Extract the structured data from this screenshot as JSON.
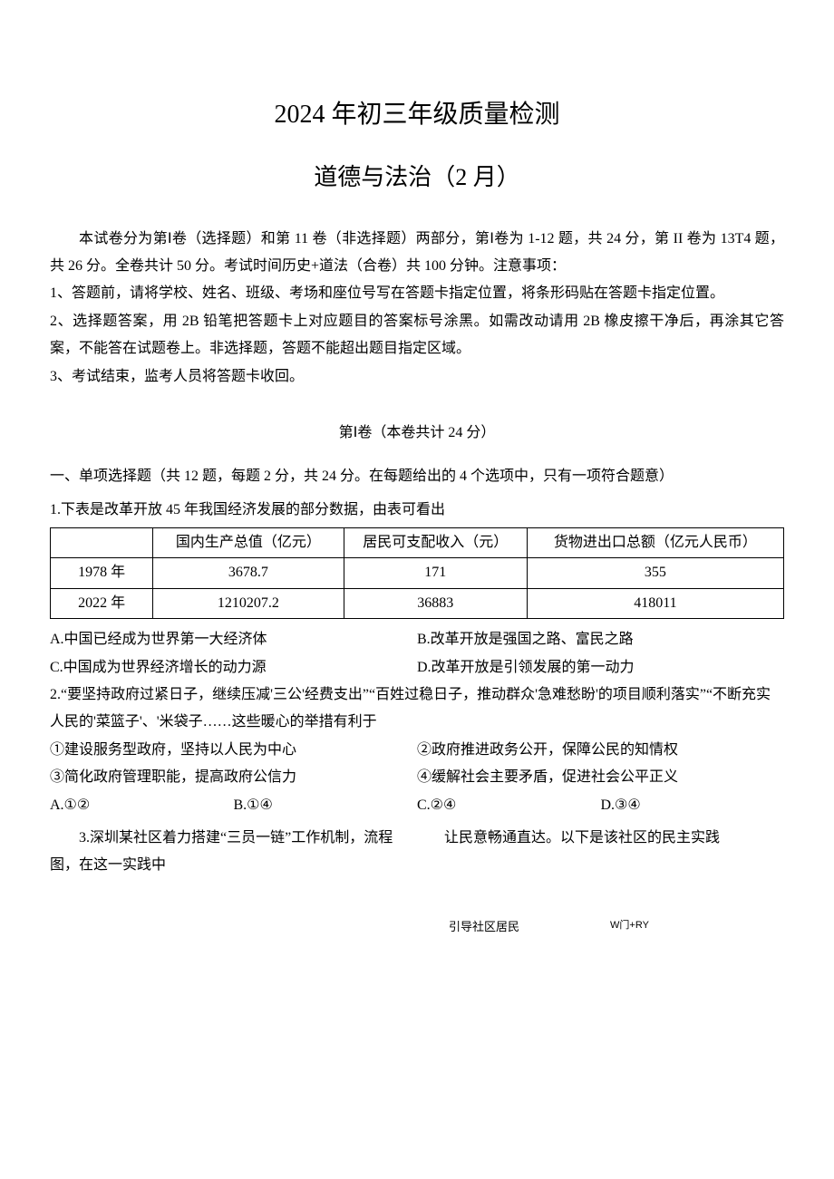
{
  "title_main": "2024 年初三年级质量检测",
  "title_sub": "道德与法治（2 月）",
  "intro": "本试卷分为第Ⅰ卷（选择题）和第 11 卷（非选择题）两部分，第Ⅰ卷为 1-12 题，共 24 分，第 II 卷为 13T4 题，共 26 分。全卷共计 50 分。考试时间历史+道法（合卷）共 100 分钟。注意事项：",
  "instr1": "1、答题前，请将学校、姓名、班级、考场和座位号写在答题卡指定位置，将条形码贴在答题卡指定位置。",
  "instr2": "2、选择题答案，用 2B 铅笔把答题卡上对应题目的答案标号涂黑。如需改动请用 2B 橡皮擦干净后，再涂其它答案，不能答在试题卷上。非选择题，答题不能超出题目指定区域。",
  "instr3": "3、考试结束，监考人员将答题卡收回。",
  "section1_header": "第Ⅰ卷（本卷共计 24 分）",
  "section1_intro": "一、单项选择题（共 12 题，每题 2 分，共 24 分。在每题给出的 4 个选项中，只有一项符合题意）",
  "q1_text": "1.下表是改革开放 45 年我国经济发展的部分数据，由表可看出",
  "table": {
    "headers": [
      "",
      "国内生产总值（亿元）",
      "居民可支配收入（元）",
      "货物进出口总额（亿元人民币）"
    ],
    "rows": [
      [
        "1978 年",
        "3678.7",
        "171",
        "355"
      ],
      [
        "2022 年",
        "1210207.2",
        "36883",
        "418011"
      ]
    ],
    "col_widths": [
      "14%",
      "26%",
      "25%",
      "35%"
    ]
  },
  "q1_options": {
    "a": "A.中国已经成为世界第一大经济体",
    "b": "B.改革开放是强国之路、富民之路",
    "c": "C.中国成为世界经济增长的动力源",
    "d": "D.改革开放是引领发展的第一动力"
  },
  "q2_text": "2.“要坚持政府过紧日子，继续压减'三公'经费支出”“百姓过稳日子，推动群众'急难愁盼'的项目顺利落实”“不断充实人民的'菜篮子'、'米袋子……这些暖心的举措有利于",
  "q2_statements": {
    "s1": "①建设服务型政府，坚持以人民为中心",
    "s2": "②政府推进政务公开，保障公民的知情权",
    "s3": "③简化政府管理职能，提高政府公信力",
    "s4": "④缓解社会主要矛盾，促进社会公平正义"
  },
  "q2_options": {
    "a": "A.①②",
    "b": "B.①④",
    "c": "C.②④",
    "d": "D.③④"
  },
  "q3_left": "3.深圳某社区着力搭建“三员一链”工作机制，流程图，在这一实践中",
  "q3_right": "让民意畅通直达。以下是该社区的民主实践",
  "footer": {
    "f1": "引导社区居民",
    "f2": "W门+RY"
  }
}
